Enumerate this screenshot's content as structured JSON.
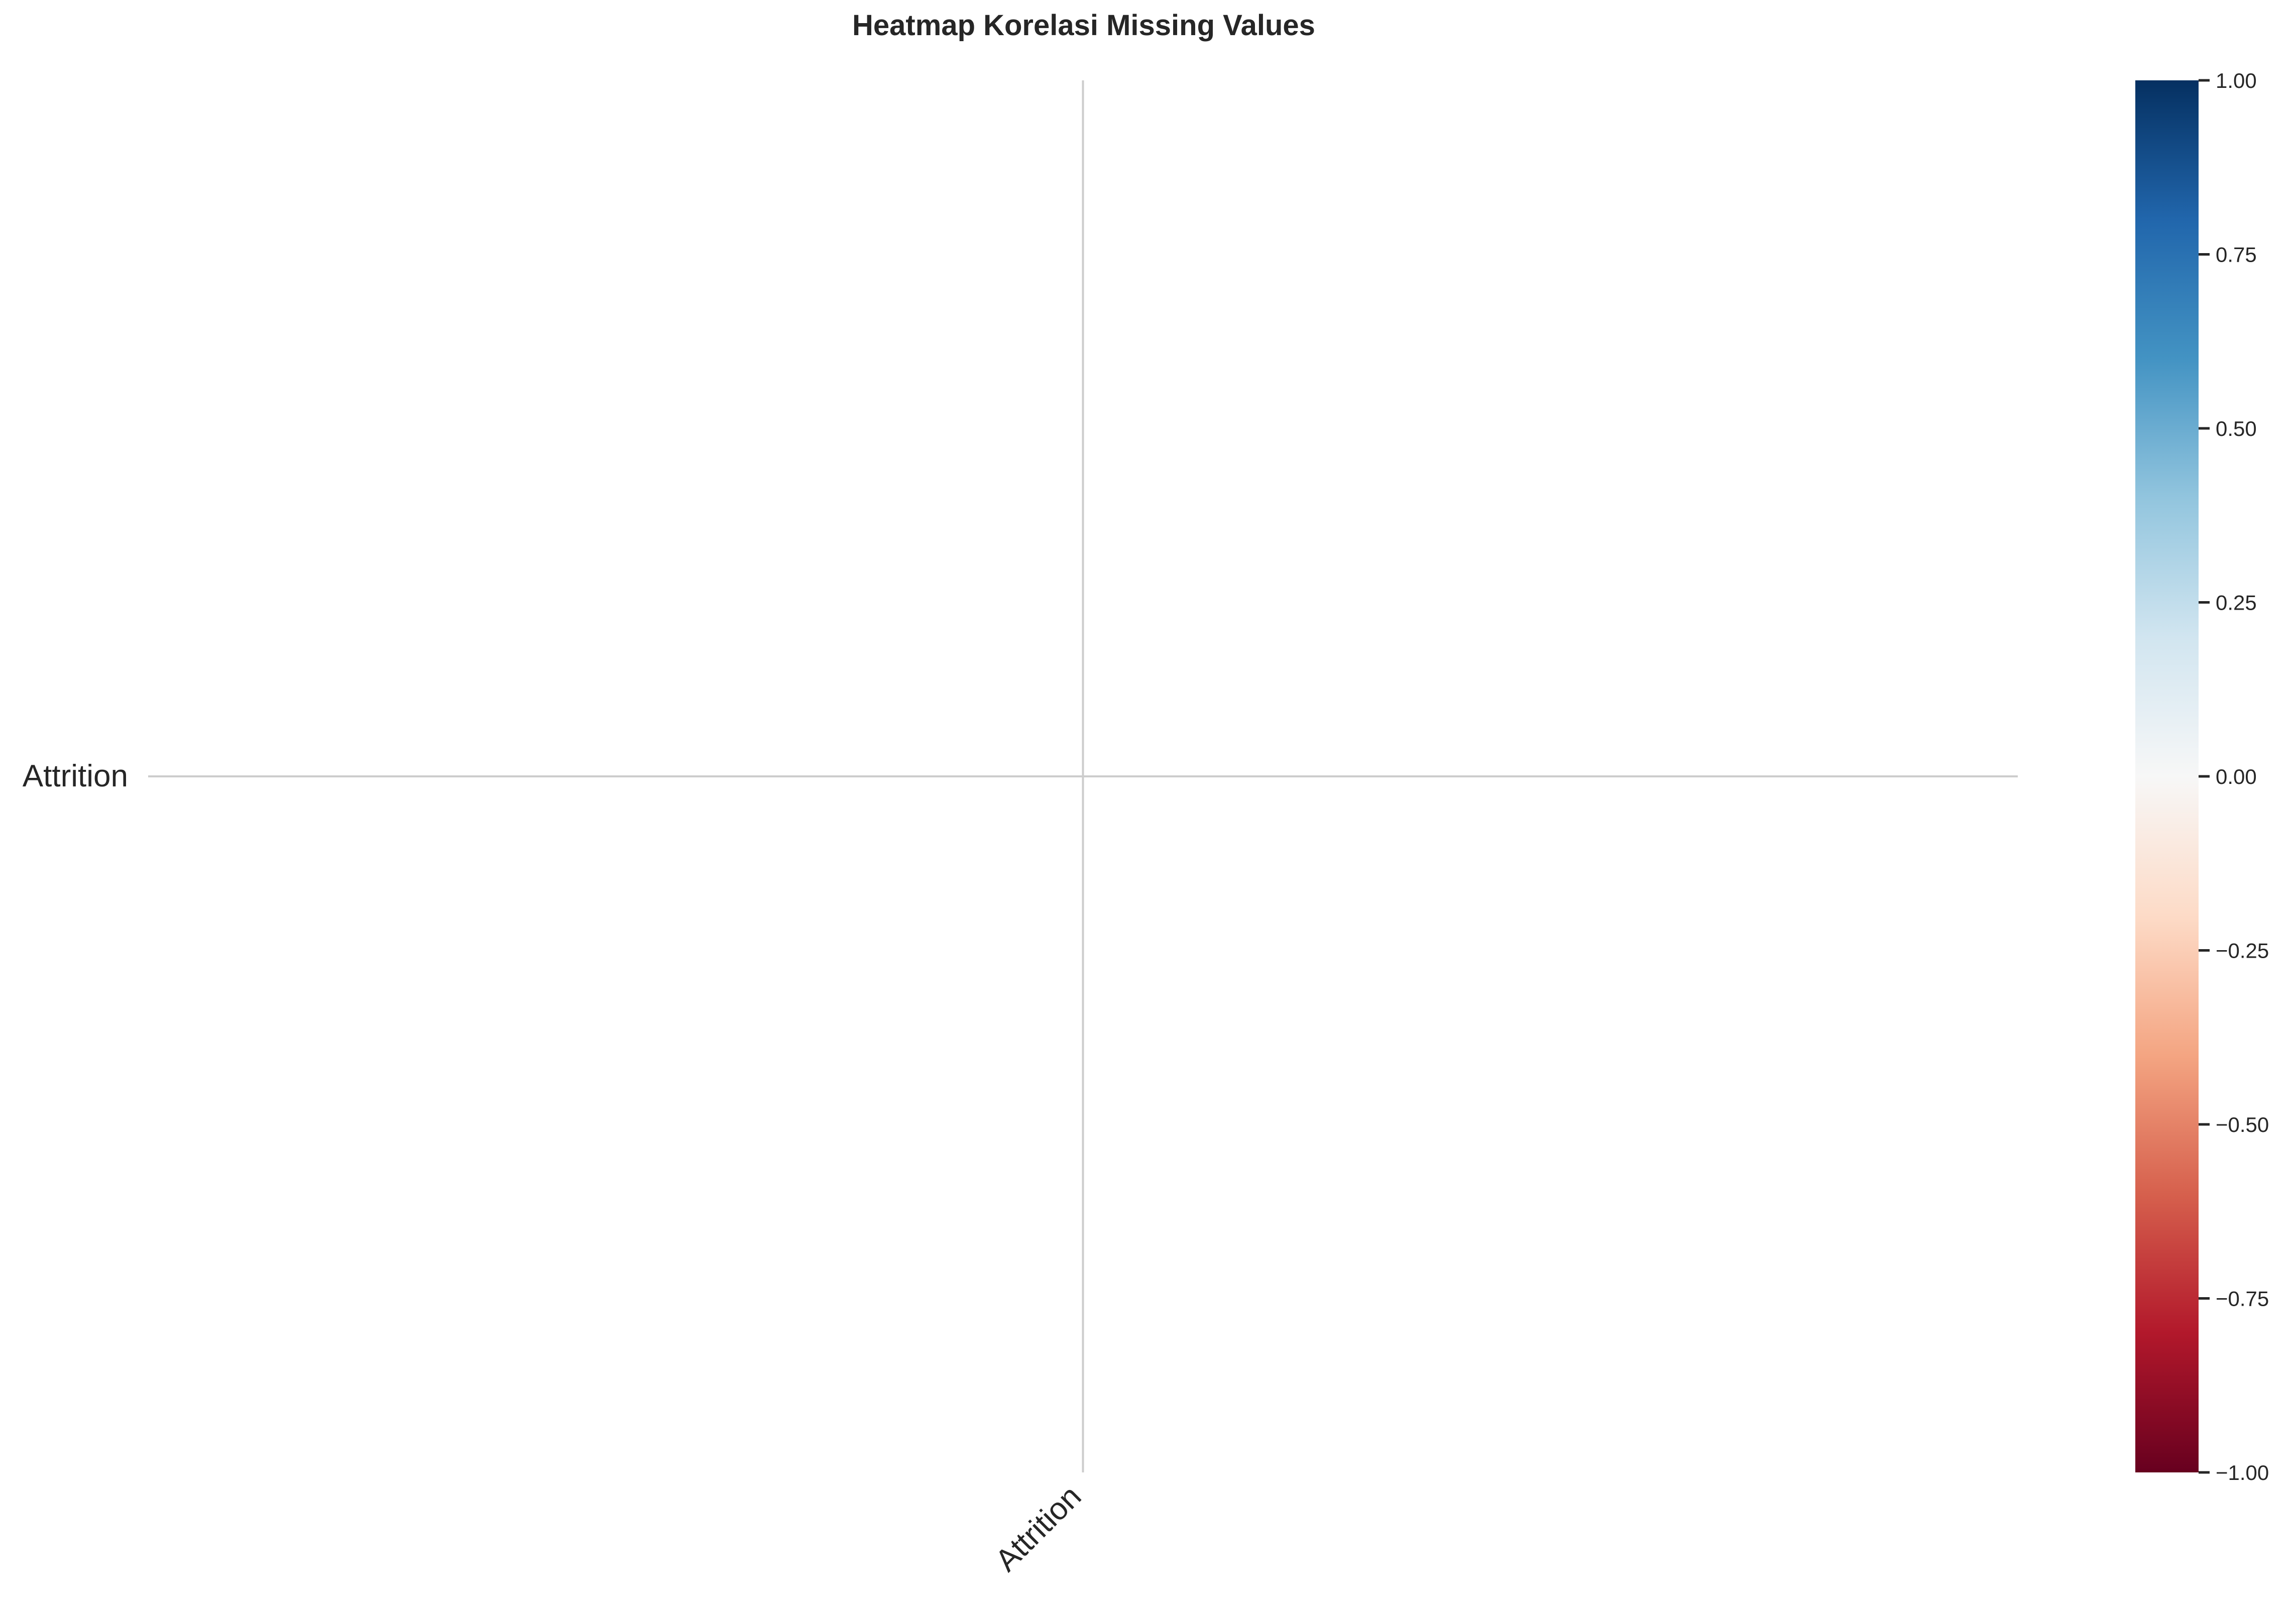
{
  "chart_data": {
    "type": "heatmap",
    "title": "Heatmap Korelasi Missing Values",
    "rows": [
      "Attrition"
    ],
    "columns": [
      "Attrition"
    ],
    "values": [
      [
        null
      ]
    ],
    "grid": true,
    "colorbar": {
      "colormap": "RdBu",
      "range": [
        -1.0,
        1.0
      ],
      "ticks": [
        1.0,
        0.75,
        0.5,
        0.25,
        0.0,
        -0.25,
        -0.5,
        -0.75,
        -1.0
      ],
      "tick_labels": [
        "1.00",
        "0.75",
        "0.50",
        "0.25",
        "0.00",
        "−0.25",
        "−0.50",
        "−0.75",
        "−1.00"
      ],
      "stops": [
        "#67001f",
        "#b2182b",
        "#d6604d",
        "#f4a582",
        "#fddbc7",
        "#f7f7f7",
        "#d1e5f0",
        "#92c5de",
        "#4393c3",
        "#2166ac",
        "#053061"
      ]
    },
    "colors": {
      "text": "#262626",
      "grid": "#cccccc",
      "tick": "#262626"
    }
  }
}
